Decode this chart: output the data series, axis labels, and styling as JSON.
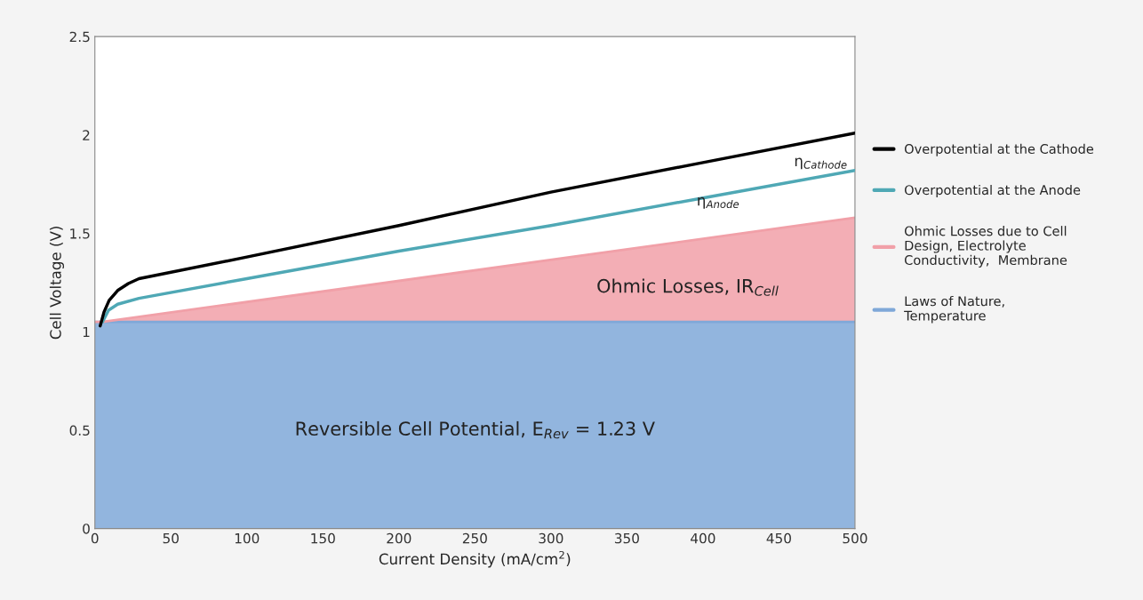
{
  "chart_data": {
    "type": "line",
    "xlabel": "Current Density (mA/cm$^{2}$)",
    "ylabel": "Cell Voltage (V)",
    "xlim": [
      0,
      500
    ],
    "xticks": [
      0,
      50,
      100,
      150,
      200,
      250,
      300,
      350,
      400,
      450,
      500
    ],
    "ylim": [
      0,
      2.5
    ],
    "yticks": [
      0,
      0.5,
      1,
      1.5,
      2,
      2.5
    ],
    "stacked": true,
    "legend": "right",
    "series": [
      {
        "name": "Laws of Nature,\nTemperature",
        "type": "area",
        "color": "#7fa8d8",
        "x": [
          0,
          5,
          500
        ],
        "values": [
          1.05,
          1.05,
          1.05
        ]
      },
      {
        "name": "Ohmic Losses due to Cell\nDesign, Electrolyte\nConductivity,  Membrane",
        "type": "area",
        "color": "#f1a0a8",
        "x": [
          0,
          5,
          500
        ],
        "values": [
          0,
          0,
          0.53
        ]
      },
      {
        "name": "Overpotential at the Anode",
        "color": "#4fa8b5",
        "x": [
          5,
          9,
          15,
          29,
          100,
          200,
          300,
          400,
          500
        ],
        "values": [
          1.05,
          1.11,
          1.14,
          1.17,
          1.27,
          1.41,
          1.54,
          1.68,
          1.82
        ]
      },
      {
        "name": "Overpotential at the Cathode",
        "color": "#000000",
        "x": [
          3.5,
          6,
          9.4,
          15,
          22,
          29,
          100,
          200,
          300,
          400,
          500
        ],
        "values": [
          1.03,
          1.1,
          1.16,
          1.21,
          1.245,
          1.27,
          1.38,
          1.54,
          1.71,
          1.86,
          2.01
        ]
      }
    ],
    "annotations": [
      "η$_{Cathode}$",
      "η$_{Anode}$",
      "Ohmic Losses, IR$_{Cell}$",
      "Reversible Cell Potential, E$_{Rev}$ = 1.23 V"
    ]
  }
}
